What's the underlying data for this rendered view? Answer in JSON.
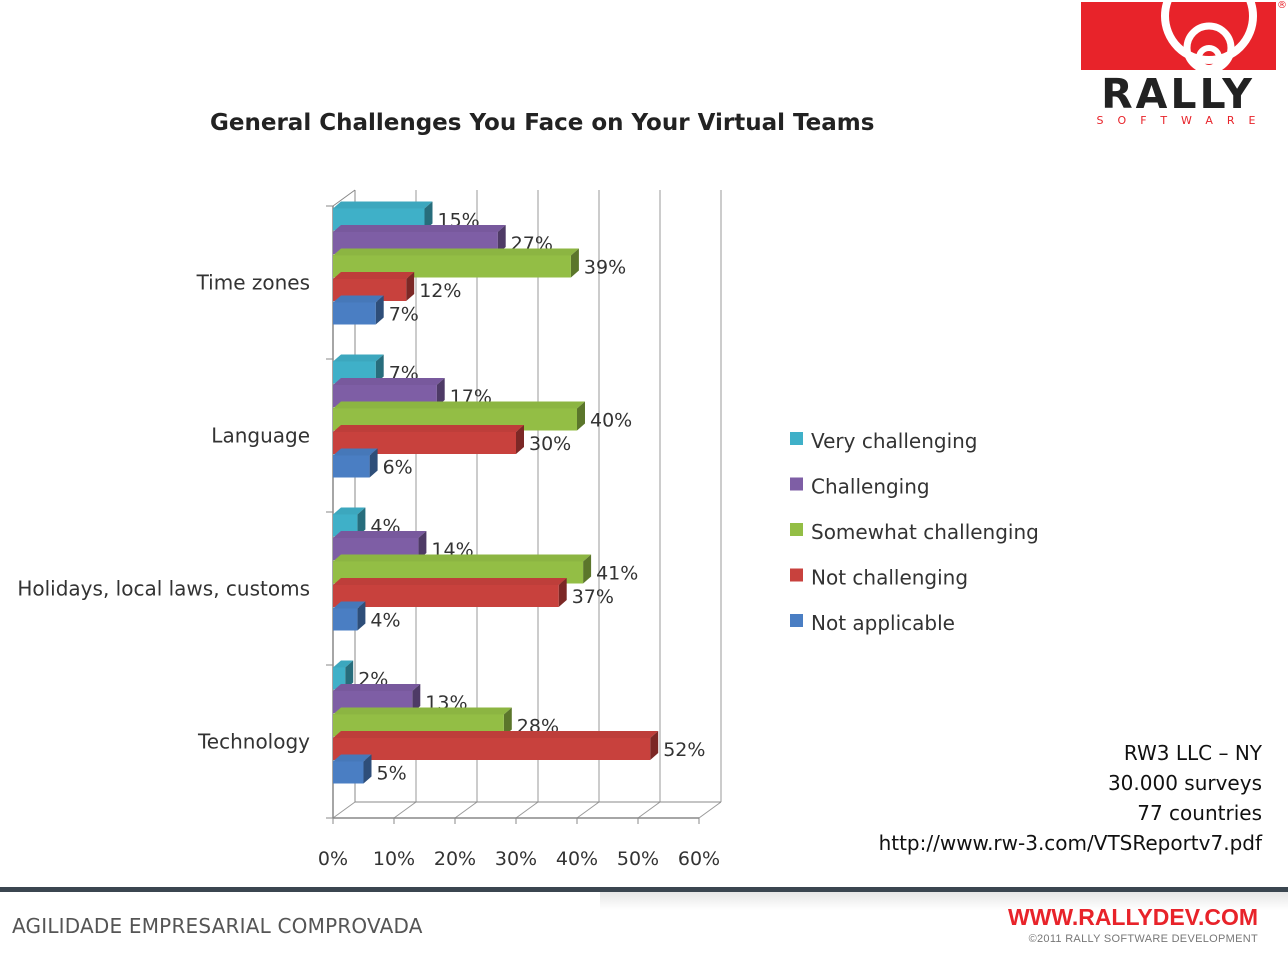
{
  "chart_data": {
    "type": "bar",
    "orientation": "horizontal",
    "title": "General Challenges You Face on Your Virtual Teams",
    "categories": [
      "Time zones",
      "Language",
      "Holidays, local laws, customs",
      "Technology"
    ],
    "series": [
      {
        "name": "Very challenging",
        "color": "#3fb0c8",
        "values": [
          15,
          7,
          4,
          2
        ]
      },
      {
        "name": "Challenging",
        "color": "#7e5ea5",
        "values": [
          27,
          17,
          14,
          13
        ]
      },
      {
        "name": "Somewhat challenging",
        "color": "#93be45",
        "values": [
          39,
          40,
          41,
          28
        ]
      },
      {
        "name": "Not challenging",
        "color": "#c8413d",
        "values": [
          12,
          30,
          37,
          52
        ]
      },
      {
        "name": "Not applicable",
        "color": "#4a7ec3",
        "values": [
          7,
          6,
          4,
          5
        ]
      }
    ],
    "xlim": [
      0,
      60
    ],
    "x_ticks": [
      "0%",
      "10%",
      "20%",
      "30%",
      "40%",
      "50%",
      "60%"
    ],
    "value_suffix": "%",
    "legend_position": "right",
    "grid": true
  },
  "source": {
    "lines": [
      "RW3 LLC – NY",
      "30.000 surveys",
      "77 countries",
      "http://www.rw-3.com/VTSReportv7.pdf"
    ]
  },
  "logo": {
    "word": "RALLY",
    "sub": "SOFTWARE",
    "reg": "®",
    "color": "#e8232a"
  },
  "footer": {
    "left": "AGILIDADE EMPRESARIAL COMPROVADA",
    "url": "WWW.RALLYDEV.COM",
    "copyright": "©2011 RALLY SOFTWARE DEVELOPMENT"
  }
}
